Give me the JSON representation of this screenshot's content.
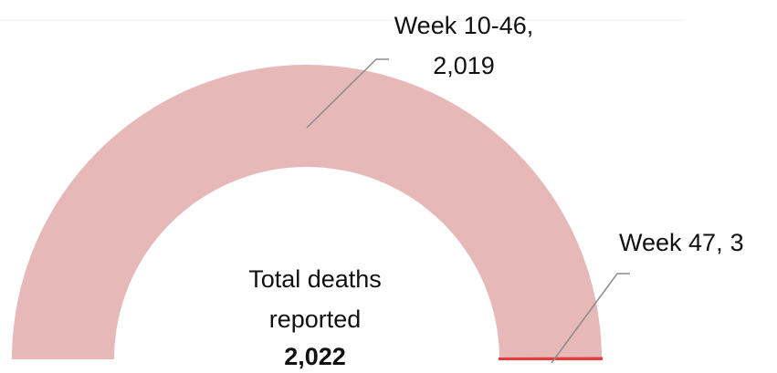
{
  "chart_data": {
    "type": "half-donut",
    "categories": [
      "Week 10-46",
      "Week 47"
    ],
    "values": [
      2019,
      3
    ],
    "value_labels": [
      "2,019",
      "3"
    ],
    "label_separator": ",",
    "colors": [
      "#e6b8b8",
      "#e8393b"
    ],
    "center_text": [
      "Total deaths",
      "reported"
    ],
    "total_label": "2,022"
  }
}
